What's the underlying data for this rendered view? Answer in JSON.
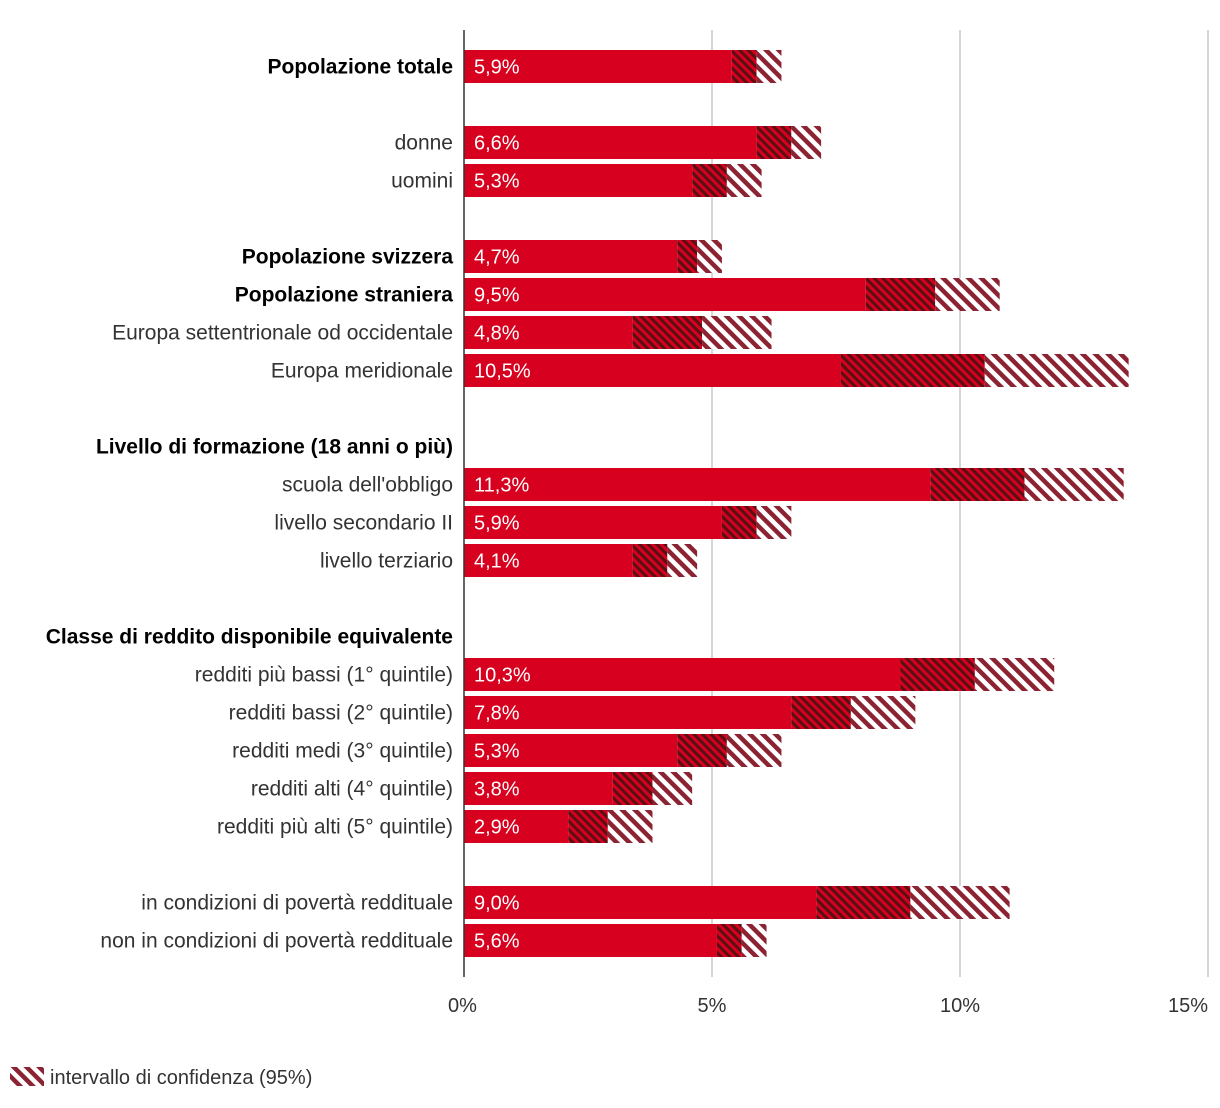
{
  "chart_data": {
    "type": "bar",
    "orientation": "horizontal",
    "unit": "%",
    "xlim": [
      0,
      15
    ],
    "xticks": [
      0,
      5,
      10,
      15
    ],
    "xtick_labels": [
      "0%",
      "5%",
      "10%",
      "15%"
    ],
    "colors": {
      "bar": "#d7001e",
      "ci": "#8b2332",
      "grid": "#c8c8c8",
      "axis": "#333333"
    },
    "legend": {
      "label": "intervallo di confidenza (95%)",
      "position": "bottom-left"
    },
    "rows": [
      {
        "label": "Popolazione totale",
        "bold": true,
        "value": 5.9,
        "label_text": "5,9%",
        "ci_low": 5.4,
        "ci_high": 6.4,
        "slot": 0
      },
      {
        "label": "donne",
        "bold": false,
        "value": 6.6,
        "label_text": "6,6%",
        "ci_low": 5.9,
        "ci_high": 7.2,
        "slot": 2
      },
      {
        "label": "uomini",
        "bold": false,
        "value": 5.3,
        "label_text": "5,3%",
        "ci_low": 4.6,
        "ci_high": 6.0,
        "slot": 3
      },
      {
        "label": "Popolazione svizzera",
        "bold": true,
        "value": 4.7,
        "label_text": "4,7%",
        "ci_low": 4.3,
        "ci_high": 5.2,
        "slot": 5
      },
      {
        "label": "Popolazione straniera",
        "bold": true,
        "value": 9.5,
        "label_text": "9,5%",
        "ci_low": 8.1,
        "ci_high": 10.8,
        "slot": 6
      },
      {
        "label": "Europa settentrionale od occidentale",
        "bold": false,
        "value": 4.8,
        "label_text": "4,8%",
        "ci_low": 3.4,
        "ci_high": 6.2,
        "slot": 7
      },
      {
        "label": "Europa meridionale",
        "bold": false,
        "value": 10.5,
        "label_text": "10,5%",
        "ci_low": 7.6,
        "ci_high": 13.4,
        "slot": 8
      },
      {
        "label": "Livello di formazione (18 anni o più)",
        "bold": true,
        "value": null,
        "label_text": "",
        "ci_low": null,
        "ci_high": null,
        "slot": 10
      },
      {
        "label": "scuola dell'obbligo",
        "bold": false,
        "value": 11.3,
        "label_text": "11,3%",
        "ci_low": 9.4,
        "ci_high": 13.3,
        "slot": 11
      },
      {
        "label": "livello secondario II",
        "bold": false,
        "value": 5.9,
        "label_text": "5,9%",
        "ci_low": 5.2,
        "ci_high": 6.6,
        "slot": 12
      },
      {
        "label": "livello terziario",
        "bold": false,
        "value": 4.1,
        "label_text": "4,1%",
        "ci_low": 3.4,
        "ci_high": 4.7,
        "slot": 13
      },
      {
        "label": "Classe di reddito disponibile equivalente",
        "bold": true,
        "value": null,
        "label_text": "",
        "ci_low": null,
        "ci_high": null,
        "slot": 15
      },
      {
        "label": "redditi più bassi (1° quintile)",
        "bold": false,
        "value": 10.3,
        "label_text": "10,3%",
        "ci_low": 8.8,
        "ci_high": 11.9,
        "slot": 16
      },
      {
        "label": "redditi bassi (2° quintile)",
        "bold": false,
        "value": 7.8,
        "label_text": "7,8%",
        "ci_low": 6.6,
        "ci_high": 9.1,
        "slot": 17
      },
      {
        "label": "redditi medi (3° quintile)",
        "bold": false,
        "value": 5.3,
        "label_text": "5,3%",
        "ci_low": 4.3,
        "ci_high": 6.4,
        "slot": 18
      },
      {
        "label": "redditi alti (4° quintile)",
        "bold": false,
        "value": 3.8,
        "label_text": "3,8%",
        "ci_low": 3.0,
        "ci_high": 4.6,
        "slot": 19
      },
      {
        "label": "redditi più alti (5° quintile)",
        "bold": false,
        "value": 2.9,
        "label_text": "2,9%",
        "ci_low": 2.1,
        "ci_high": 3.8,
        "slot": 20
      },
      {
        "label": "in condizioni di povertà reddituale",
        "bold": false,
        "value": 9.0,
        "label_text": "9,0%",
        "ci_low": 7.1,
        "ci_high": 11.0,
        "slot": 22
      },
      {
        "label": "non in condizioni di povertà reddituale",
        "bold": false,
        "value": 5.6,
        "label_text": "5,6%",
        "ci_low": 5.1,
        "ci_high": 6.1,
        "slot": 23
      }
    ]
  }
}
